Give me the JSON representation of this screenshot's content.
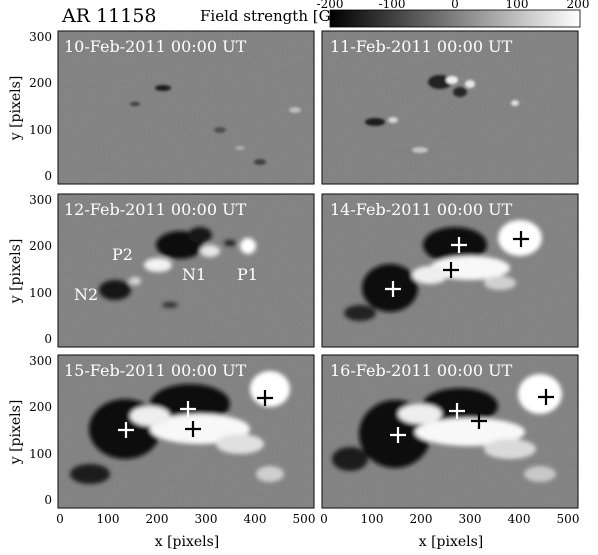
{
  "title": "AR 11158",
  "colorbar": {
    "label": "Field strength [G]",
    "ticks": [
      "-200",
      "-100",
      "0",
      "100",
      "200"
    ],
    "colors": {
      "min": "#000000",
      "mid": "#808080",
      "max": "#ffffff"
    }
  },
  "axes": {
    "xlabel": "x [pixels]",
    "ylabel": "y [pixels]",
    "xticks": [
      "0",
      "100",
      "200",
      "300",
      "400",
      "500"
    ],
    "yticks": [
      "0",
      "100",
      "200",
      "300"
    ]
  },
  "panels": [
    {
      "id": "p1",
      "date": "10-Feb-2011 00:00 UT",
      "labels": []
    },
    {
      "id": "p2",
      "date": "11-Feb-2011 00:00 UT",
      "labels": []
    },
    {
      "id": "p3",
      "date": "12-Feb-2011 00:00 UT",
      "labels": [
        {
          "text": "P2"
        },
        {
          "text": "N1"
        },
        {
          "text": "P1"
        },
        {
          "text": "N2"
        }
      ]
    },
    {
      "id": "p4",
      "date": "14-Feb-2011 00:00 UT",
      "labels": []
    },
    {
      "id": "p5",
      "date": "15-Feb-2011 00:00 UT",
      "labels": []
    },
    {
      "id": "p6",
      "date": "16-Feb-2011 00:00 UT",
      "labels": []
    }
  ]
}
